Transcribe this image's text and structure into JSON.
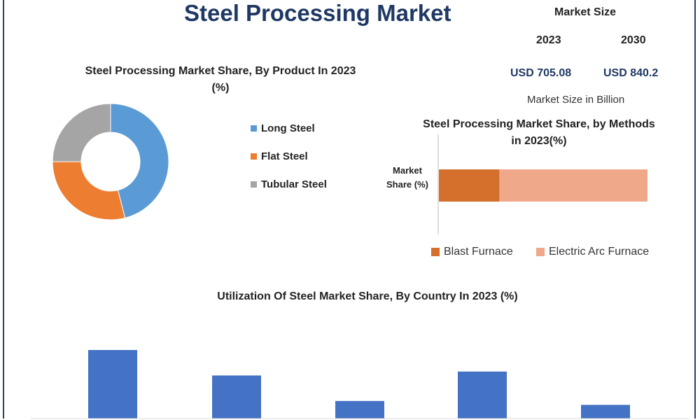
{
  "header": {
    "title": "Steel Processing Market",
    "market_size_label": "Market Size",
    "year_1": "2023",
    "year_2": "2030",
    "value_1": "USD 705.08",
    "value_2": "USD 840.2",
    "unit_note": "Market Size in Billion"
  },
  "colors": {
    "title": "#1f3864",
    "long_steel": "#5b9bd5",
    "flat_steel": "#ed7d31",
    "tubular_steel": "#a5a5a5",
    "blast_furnace": "#d46f2c",
    "electric_arc_furnace": "#f0a88a",
    "country_bars": "#4472c4"
  },
  "chart_data": [
    {
      "type": "pie",
      "title": "Steel Processing Market Share, By Product In 2023  (%)",
      "donut": true,
      "categories": [
        "Long Steel",
        "Flat Steel",
        "Tubular Steel"
      ],
      "values": [
        46,
        29,
        25
      ],
      "legend": "right"
    },
    {
      "type": "bar",
      "orientation": "horizontal",
      "stacked": true,
      "title": "Steel Processing Market Share, by Methods in 2023(%)",
      "categories": [
        "Market Share (%)"
      ],
      "ylabel": "Market Share (%)",
      "series": [
        {
          "name": "Blast Furnace",
          "values": [
            29
          ]
        },
        {
          "name": "Electric Arc Furnace",
          "values": [
            71
          ]
        }
      ],
      "xlim": [
        0,
        100
      ],
      "legend": "bottom"
    },
    {
      "type": "bar",
      "title": "Utilization Of Steel Market Share, By Country In 2023  (%)",
      "categories": [
        "",
        "",
        "",
        "",
        ""
      ],
      "values": [
        35,
        22,
        9,
        24,
        7
      ],
      "ylim": [
        0,
        50
      ]
    }
  ]
}
